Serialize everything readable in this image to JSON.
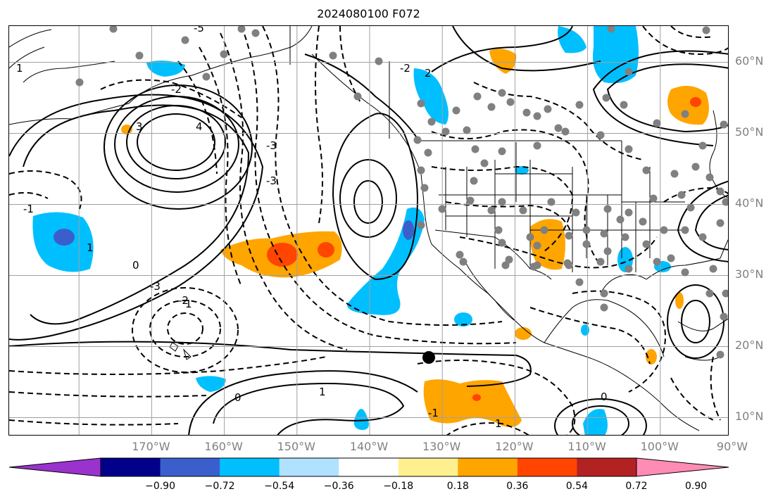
{
  "title": "2024080100 F072",
  "lat_labels": [
    {
      "text": "60°N",
      "lat": 60
    },
    {
      "text": "50°N",
      "lat": 50
    },
    {
      "text": "40°N",
      "lat": 40
    },
    {
      "text": "30°N",
      "lat": 30
    },
    {
      "text": "20°N",
      "lat": 20
    },
    {
      "text": "10°N",
      "lat": 10
    }
  ],
  "lon_labels": [
    {
      "text": "170°W",
      "lon": -170
    },
    {
      "text": "160°W",
      "lon": -160
    },
    {
      "text": "150°W",
      "lon": -150
    },
    {
      "text": "140°W",
      "lon": -140
    },
    {
      "text": "130°W",
      "lon": -130
    },
    {
      "text": "120°W",
      "lon": -120
    },
    {
      "text": "110°W",
      "lon": -110
    },
    {
      "text": "100°W",
      "lon": -100
    },
    {
      "text": "90°W",
      "lon": -90
    }
  ],
  "colorbar": {
    "colors": [
      "#9a32cd",
      "#00008b",
      "#3a5fcd",
      "#00bfff",
      "#b0e2ff",
      "#ffffff",
      "#fff08f",
      "#ffa500",
      "#ff4500",
      "#b22222",
      "#ff8cb4"
    ],
    "labels": [
      "−0.90",
      "−0.72",
      "−0.54",
      "−0.36",
      "−0.18",
      "0.18",
      "0.36",
      "0.54",
      "0.72",
      "0.90"
    ]
  },
  "gridline_color": "#a0a0a0",
  "station_color": "#808080",
  "contour_labels": [
    "3",
    "4",
    "-5",
    "-2",
    "-2",
    "2",
    "1",
    "-3",
    "-1",
    "-3",
    "1",
    "0",
    "-3",
    "-2",
    "1",
    "0",
    "1",
    "-1",
    "1",
    "0"
  ]
}
